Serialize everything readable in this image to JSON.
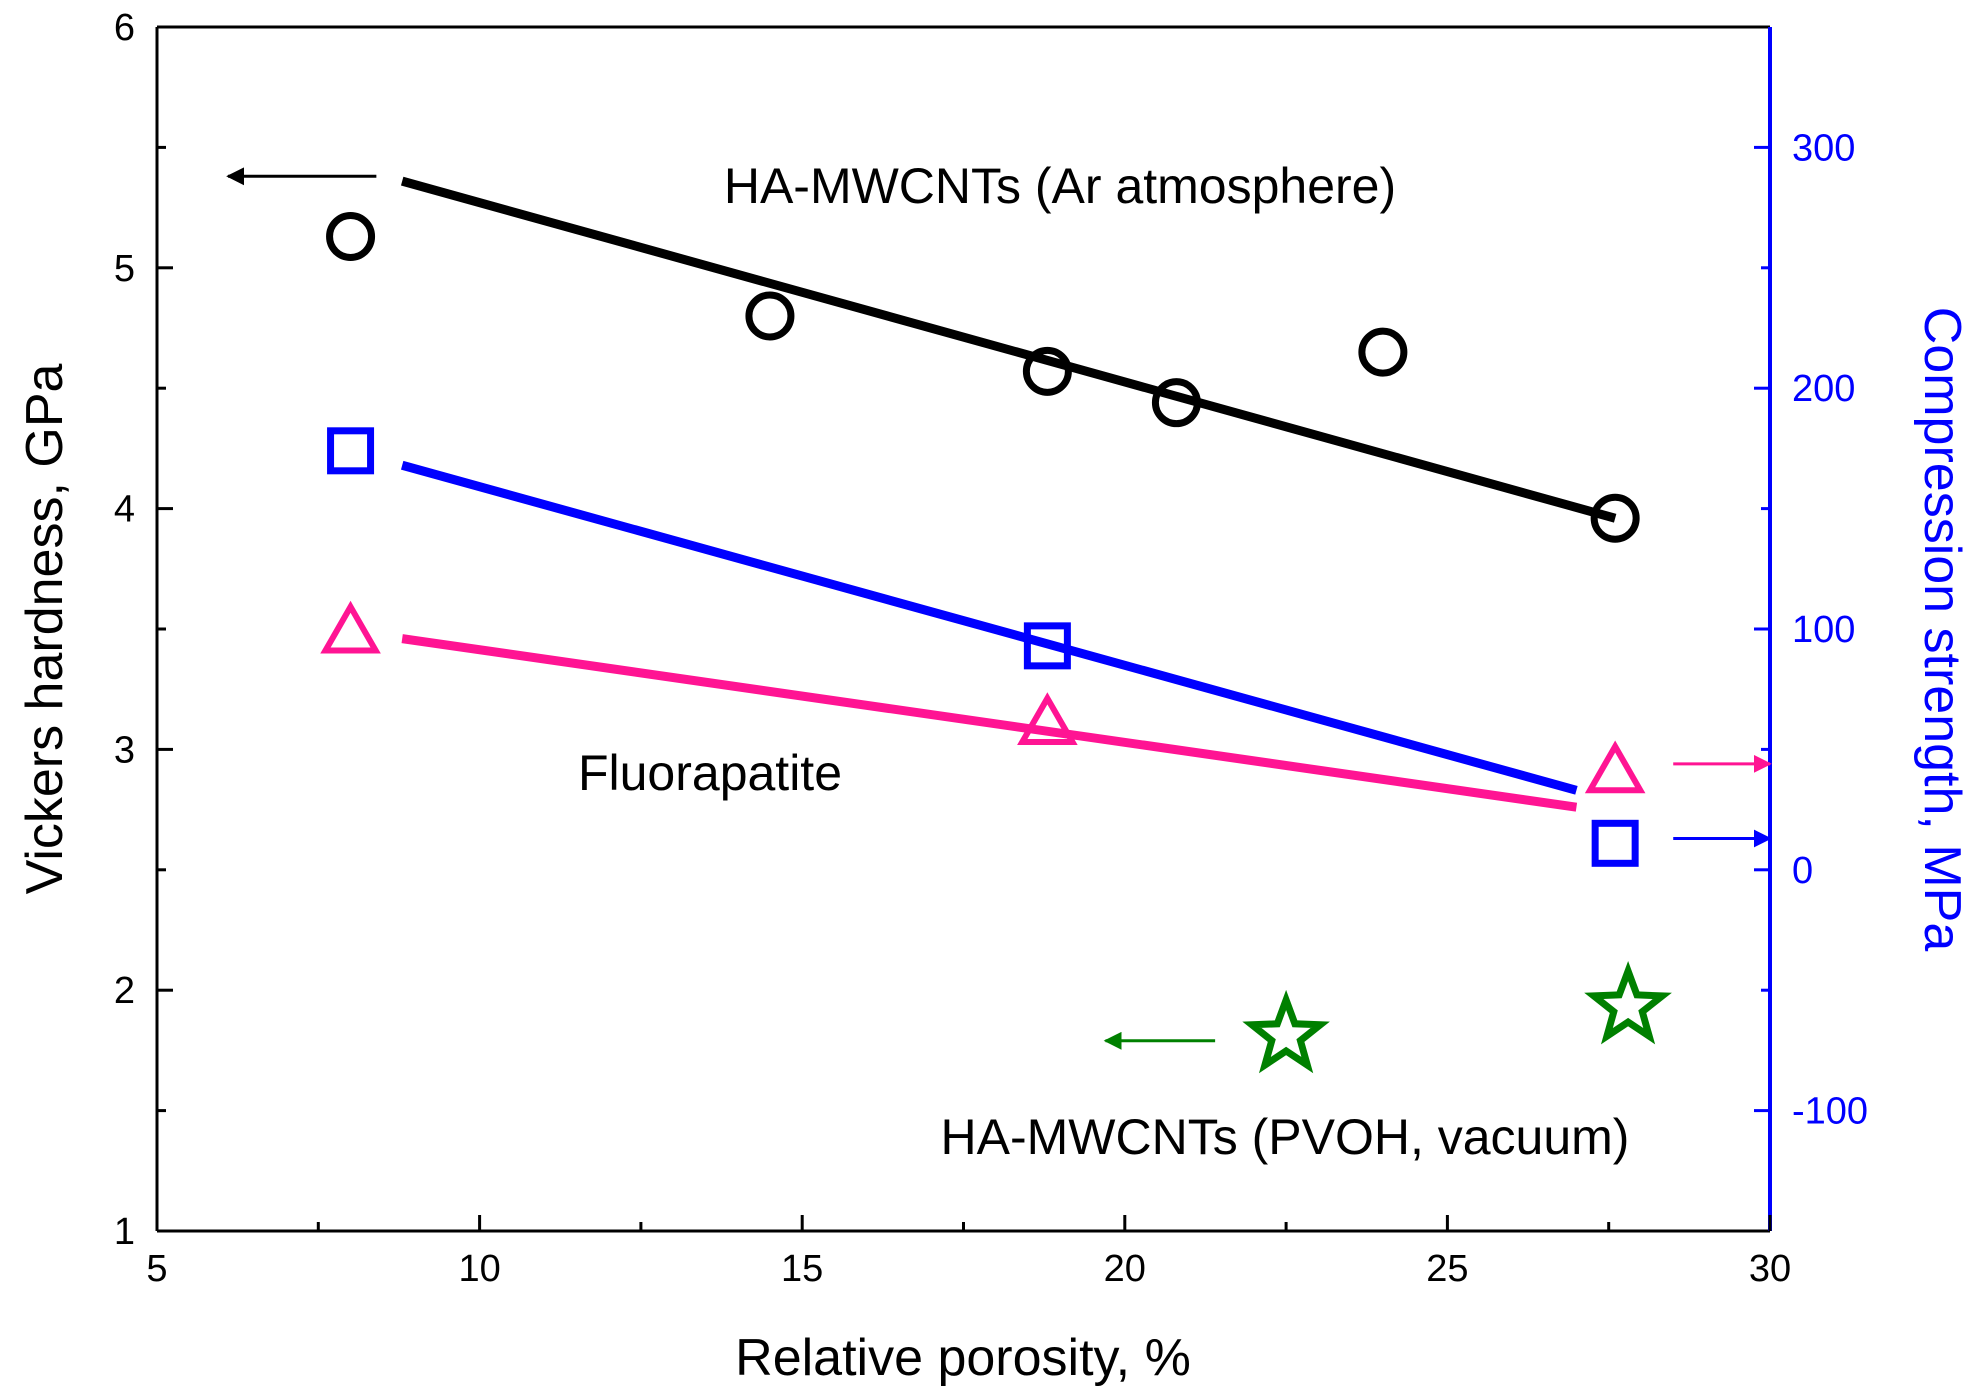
{
  "chart_data": {
    "type": "scatter",
    "x_axis": {
      "label": "Relative porosity, %",
      "range": [
        5,
        30
      ],
      "ticks": [
        5,
        10,
        15,
        20,
        25,
        30
      ],
      "tick_labels": [
        "5",
        "10",
        "15",
        "20",
        "25",
        "30"
      ]
    },
    "y_left": {
      "label": "Vickers hardness, GPa",
      "range": [
        1,
        6
      ],
      "ticks": [
        1,
        2,
        3,
        4,
        5,
        6
      ],
      "tick_labels": [
        "1",
        "2",
        "3",
        "4",
        "5",
        "6"
      ]
    },
    "y_right": {
      "label": "Compression strength, MPa",
      "range": [
        -150,
        350
      ],
      "ticks": [
        -100,
        0,
        100,
        200,
        300
      ],
      "tick_labels": [
        "-100",
        "0",
        "100",
        "200",
        "300"
      ],
      "color": "#0000ff"
    },
    "series": [
      {
        "name": "HA-MWCNTs (Ar atmosphere)",
        "axis": "left",
        "marker": "circle",
        "color": "#000000",
        "points": [
          [
            8,
            5.13
          ],
          [
            14.5,
            4.8
          ],
          [
            18.8,
            4.57
          ],
          [
            20.8,
            4.44
          ],
          [
            24,
            4.65
          ],
          [
            27.6,
            3.96
          ]
        ],
        "fit": [
          [
            8.8,
            5.36
          ],
          [
            27.6,
            3.96
          ]
        ]
      },
      {
        "name": "Fluorapatite",
        "axis": "left",
        "marker": "triangle",
        "color": "#ff1493",
        "points": [
          [
            8,
            3.48
          ],
          [
            18.8,
            3.1
          ],
          [
            27.6,
            2.9
          ]
        ],
        "fit": [
          [
            8.8,
            3.46
          ],
          [
            27,
            2.76
          ]
        ]
      },
      {
        "name": "Compression strength",
        "axis": "right",
        "marker": "square",
        "color": "#0000ff",
        "points": [
          [
            8,
            174
          ],
          [
            18.8,
            93
          ],
          [
            27.6,
            11
          ]
        ],
        "fit": [
          [
            8.8,
            168
          ],
          [
            27,
            33
          ]
        ]
      },
      {
        "name": "HA-MWCNTs (PVOH, vacuum)",
        "axis": "left",
        "marker": "star",
        "color": "#008000",
        "points": [
          [
            22.5,
            1.81
          ],
          [
            27.8,
            1.93
          ]
        ]
      }
    ],
    "annotations": [
      {
        "text": "HA-MWCNTs (Ar atmosphere)",
        "at": [
          18.8,
          5.33
        ]
      },
      {
        "text": "Fluorapatite",
        "at": [
          13.5,
          2.88
        ]
      },
      {
        "text": "HA-MWCNTs (PVOH, vacuum)",
        "at": [
          22.8,
          1.37
        ]
      }
    ],
    "arrows": [
      {
        "series": "HA-MWCNTs (Ar atmosphere)",
        "direction": "left",
        "from": [
          8.4,
          5.38
        ],
        "to": [
          6.1,
          5.38
        ],
        "color": "#000000"
      },
      {
        "series": "Fluorapatite",
        "direction": "right",
        "from": [
          28.5,
          2.94
        ],
        "to": [
          30.0,
          2.94
        ],
        "color": "#ff1493"
      },
      {
        "series": "Compression strength",
        "direction": "right",
        "from": [
          28.5,
          2.63
        ],
        "to": [
          30.0,
          2.63
        ],
        "color": "#0000ff"
      },
      {
        "series": "HA-MWCNTs (PVOH, vacuum)",
        "direction": "left",
        "from": [
          21.4,
          1.79
        ],
        "to": [
          19.7,
          1.79
        ],
        "color": "#008000"
      }
    ]
  }
}
